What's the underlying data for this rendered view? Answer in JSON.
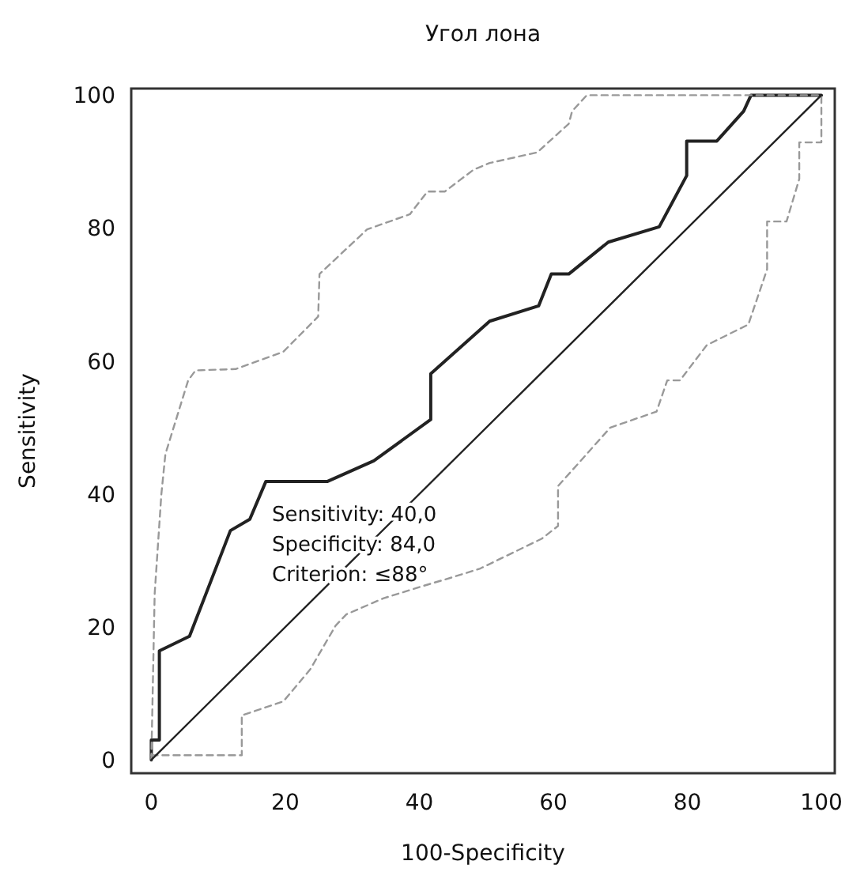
{
  "chart_data": {
    "type": "line",
    "title": "Угол лона",
    "xlabel": "100-Specificity",
    "ylabel": "Sensitivity",
    "xlim": [
      -3,
      102
    ],
    "ylim": [
      -2,
      101
    ],
    "xticks": [
      0,
      20,
      40,
      60,
      80,
      100
    ],
    "yticks": [
      0,
      20,
      40,
      60,
      80,
      100
    ],
    "grid": false,
    "annotations": [
      "Sensitivity: 40,0",
      "Specificity: 84,0",
      "Criterion: ≤88°"
    ],
    "series": [
      {
        "color": "#222222",
        "line_style": "solid",
        "x": [
          0,
          0,
          1.2,
          1.2,
          5.7,
          11.8,
          14.7,
          17.1,
          26.3,
          33.2,
          41.7,
          41.7,
          50.5,
          57.8,
          59.7,
          62.3,
          68.2,
          75.8,
          79.9,
          79.9,
          84.4,
          88.4,
          89.5,
          100
        ],
        "values": [
          0,
          3,
          3,
          16.4,
          18.6,
          34.5,
          36.2,
          41.9,
          41.9,
          45,
          51.2,
          58.1,
          66,
          68.3,
          73.1,
          73.1,
          77.9,
          80.2,
          87.9,
          93.1,
          93.1,
          97.6,
          100,
          100
        ]
      },
      {
        "color": "#999999",
        "line_style": "dashed",
        "x": [
          0,
          0.5,
          1.5,
          2.1,
          5.5,
          6.6,
          12.6,
          19.7,
          24.9,
          25.1,
          32.2,
          38.6,
          41.2,
          43.8,
          48.1,
          50.5,
          57.6,
          62.3,
          62.8,
          65,
          100
        ],
        "values": [
          0,
          25,
          40,
          46,
          57.1,
          58.6,
          58.8,
          61.4,
          66.7,
          73.1,
          79.8,
          82.1,
          85.5,
          85.5,
          88.8,
          89.8,
          91.4,
          95.7,
          97.6,
          100,
          100
        ]
      },
      {
        "color": "#999999",
        "line_style": "dashed",
        "x": [
          0,
          13.5,
          13.5,
          19.7,
          23.7,
          27.5,
          29.1,
          34.6,
          40,
          45,
          49.1,
          58.3,
          60.7,
          60.7,
          64.7,
          68.5,
          75.4,
          77,
          78.9,
          82.9,
          89.1,
          91.9,
          91.9,
          94.8,
          96.7,
          96.7,
          100,
          100
        ],
        "values": [
          0.7,
          0.7,
          6.7,
          8.8,
          13.6,
          20.2,
          21.9,
          24.3,
          26,
          27.5,
          28.8,
          33.3,
          35.2,
          41.2,
          45.7,
          50,
          52.4,
          57.1,
          57.1,
          62.4,
          65.5,
          73.8,
          81,
          81,
          87.4,
          92.9,
          92.9,
          100
        ]
      },
      {
        "color": "#222222",
        "line_style": "solid",
        "x": [
          0,
          100
        ],
        "values": [
          0,
          100
        ]
      }
    ]
  }
}
